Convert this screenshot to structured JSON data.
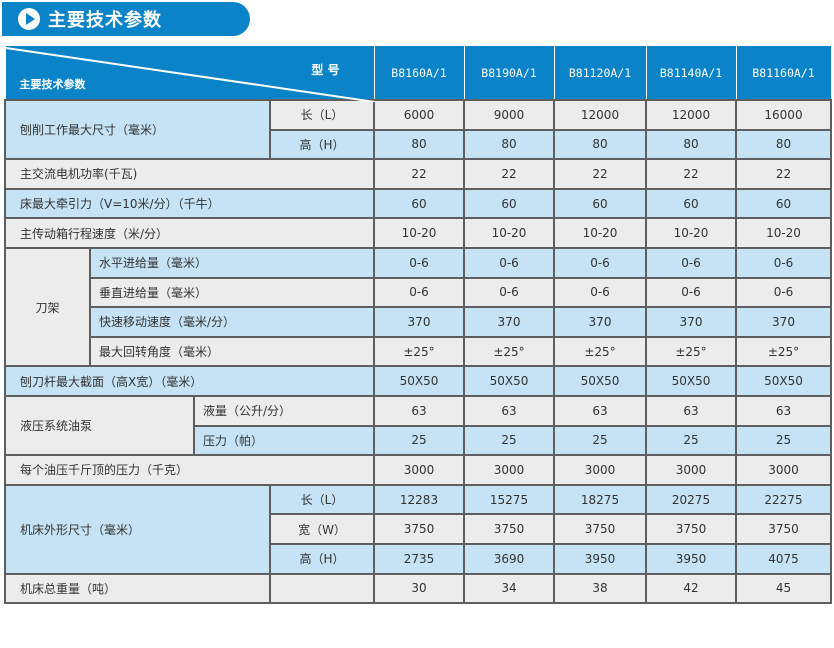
{
  "title": "主要技术参数",
  "header": {
    "corner_top": "型 号",
    "corner_bottom": "主要技术参数",
    "models": [
      "B8160A/1",
      "B8190A/1",
      "B81120A/1",
      "B81140A/1",
      "B81160A/1"
    ]
  },
  "rows": {
    "r1": {
      "group": "刨削工作最大尺寸（毫米）",
      "sub": "长（L）",
      "values": [
        "6000",
        "9000",
        "12000",
        "12000",
        "16000"
      ]
    },
    "r2": {
      "sub": "高（H）",
      "values": [
        "80",
        "80",
        "80",
        "80",
        "80"
      ]
    },
    "r3": {
      "label": "主交流电机功率(千瓦)",
      "values": [
        "22",
        "22",
        "22",
        "22",
        "22"
      ]
    },
    "r4": {
      "label": "床最大牵引力（V=10米/分）（千牛）",
      "values": [
        "60",
        "60",
        "60",
        "60",
        "60"
      ]
    },
    "r5": {
      "label": "主传动箱行程速度（米/分）",
      "values": [
        "10-20",
        "10-20",
        "10-20",
        "10-20",
        "10-20"
      ]
    },
    "r6": {
      "group": "刀架",
      "sub": "水平进给量（毫米）",
      "values": [
        "0-6",
        "0-6",
        "0-6",
        "0-6",
        "0-6"
      ]
    },
    "r7": {
      "sub": "垂直进给量（毫米）",
      "values": [
        "0-6",
        "0-6",
        "0-6",
        "0-6",
        "0-6"
      ]
    },
    "r8": {
      "sub": "快速移动速度（毫米/分）",
      "values": [
        "370",
        "370",
        "370",
        "370",
        "370"
      ]
    },
    "r9": {
      "sub": "最大回转角度（毫米）",
      "values": [
        "±25°",
        "±25°",
        "±25°",
        "±25°",
        "±25°"
      ]
    },
    "r10": {
      "label": "刨刀杆最大截面（高X宽）（毫米）",
      "values": [
        "50X50",
        "50X50",
        "50X50",
        "50X50",
        "50X50"
      ]
    },
    "r11": {
      "group": "液压系统油泵",
      "sub": "液量（公升/分）",
      "values": [
        "63",
        "63",
        "63",
        "63",
        "63"
      ]
    },
    "r12": {
      "sub": "压力（帕）",
      "values": [
        "25",
        "25",
        "25",
        "25",
        "25"
      ]
    },
    "r13": {
      "label": "每个油压千斤顶的压力（千克）",
      "values": [
        "3000",
        "3000",
        "3000",
        "3000",
        "3000"
      ]
    },
    "r14": {
      "group": "机床外形尺寸（毫米）",
      "sub": "长（L）",
      "values": [
        "12283",
        "15275",
        "18275",
        "20275",
        "22275"
      ]
    },
    "r15": {
      "sub": "宽（W）",
      "values": [
        "3750",
        "3750",
        "3750",
        "3750",
        "3750"
      ]
    },
    "r16": {
      "sub": "高（H）",
      "values": [
        "2735",
        "3690",
        "3950",
        "3950",
        "4075"
      ]
    },
    "r17": {
      "label": "机床总重量（吨）",
      "values": [
        "30",
        "34",
        "38",
        "42",
        "45"
      ]
    }
  },
  "colors": {
    "brand": "#0a83c9",
    "row_blue": "#c5e3f5",
    "row_gray": "#ececec"
  }
}
